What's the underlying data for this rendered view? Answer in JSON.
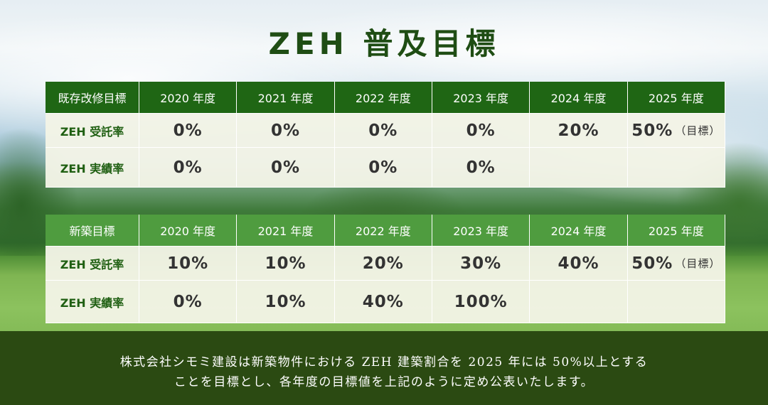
{
  "title": "ZEH 普及目標",
  "table_existing": {
    "label": "既存改修目標",
    "years": [
      "2020 年度",
      "2021 年度",
      "2022 年度",
      "2023 年度",
      "2024 年度",
      "2025 年度"
    ],
    "rows": [
      {
        "label": "ZEH 受託率",
        "values": [
          "0%",
          "0%",
          "0%",
          "0%",
          "20%",
          "50%"
        ]
      },
      {
        "label": "ZEH 実績率",
        "values": [
          "0%",
          "0%",
          "0%",
          "0%",
          "",
          ""
        ]
      }
    ]
  },
  "table_new": {
    "label": "新築目標",
    "years": [
      "2020 年度",
      "2021 年度",
      "2022 年度",
      "2023 年度",
      "2024 年度",
      "2025 年度"
    ],
    "rows": [
      {
        "label": "ZEH 受託率",
        "values": [
          "10%",
          "10%",
          "20%",
          "30%",
          "40%",
          "50%"
        ]
      },
      {
        "label": "ZEH 実績率",
        "values": [
          "0%",
          "10%",
          "40%",
          "100%",
          "",
          ""
        ]
      }
    ]
  },
  "target_tag": "（目標）",
  "footer": {
    "line1": "株式会社シモミ建設は新築物件における ZEH 建築割合を 2025 年には 50%以上とする",
    "line2": "ことを目標とし、各年度の目標値を上記のように定め公表いたします。"
  }
}
